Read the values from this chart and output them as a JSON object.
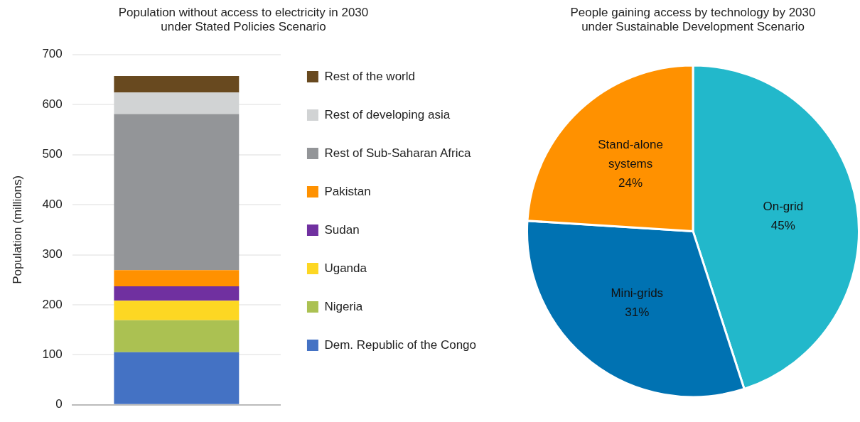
{
  "chart_data": [
    {
      "type": "bar",
      "title": [
        "Population without access to electricity in 2030",
        "under Stated Policies Scenario"
      ],
      "ylabel": "Population (millions)",
      "categories": [
        null
      ],
      "stacked": true,
      "ylim": [
        0,
        700
      ],
      "yticks": [
        0,
        100,
        200,
        300,
        400,
        500,
        600,
        700
      ],
      "grid": "y",
      "legend": "right",
      "series": [
        {
          "name": "Dem. Republic of the Congo",
          "color": "#4472c4",
          "values": [
            105
          ]
        },
        {
          "name": "Nigeria",
          "color": "#abc152",
          "values": [
            64
          ]
        },
        {
          "name": "Uganda",
          "color": "#fdd723",
          "values": [
            39
          ]
        },
        {
          "name": "Sudan",
          "color": "#7030a0",
          "values": [
            29
          ]
        },
        {
          "name": "Pakistan",
          "color": "#ff9100",
          "values": [
            32
          ]
        },
        {
          "name": "Rest of Sub-Saharan Africa",
          "color": "#939598",
          "values": [
            312
          ]
        },
        {
          "name": "Rest of developing asia",
          "color": "#d1d3d4",
          "values": [
            43
          ]
        },
        {
          "name": "Rest of the world",
          "color": "#68491f",
          "values": [
            33
          ]
        }
      ]
    },
    {
      "type": "pie",
      "title": [
        "People gaining access by technology by 2030",
        "under Sustainable Development Scenario"
      ],
      "categories": [
        "On-grid",
        "Mini-grids",
        "Stand-alone systems"
      ],
      "values": [
        45,
        31,
        24
      ],
      "value_labels": [
        "45%",
        "31%",
        "24%"
      ],
      "colors": [
        "#22b8cb",
        "#0072b2",
        "#ff9100"
      ],
      "data_labels": true,
      "legend": false
    }
  ]
}
